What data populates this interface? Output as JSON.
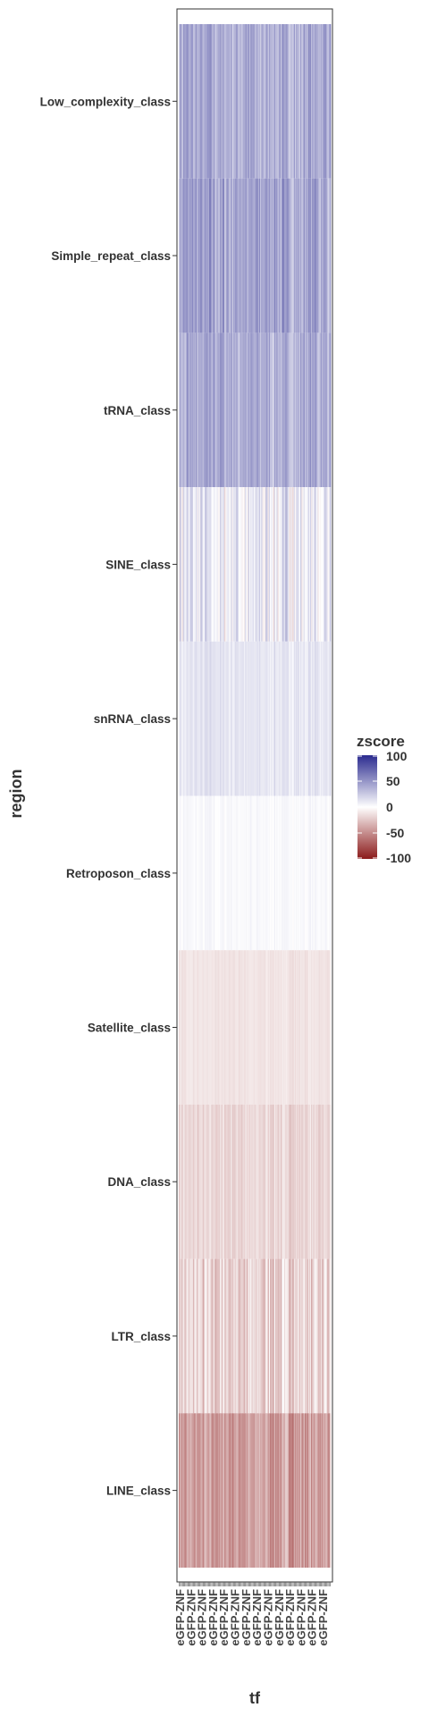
{
  "chart_data": {
    "type": "heatmap",
    "xlabel": "tf",
    "ylabel": "region",
    "x_tick_labels": [
      "eGFP-ZNF",
      "eGFP-ZNF",
      "eGFP-ZNF",
      "eGFP-ZNF",
      "eGFP-ZNF",
      "eGFP-ZNF",
      "eGFP-ZNF",
      "eGFP-ZNF",
      "eGFP-ZNF",
      "eGFP-ZNF",
      "eGFP-ZNF",
      "eGFP-ZNF",
      "eGFP-ZNF",
      "eGFP-ZNF"
    ],
    "rows": [
      {
        "label": "Low_complexity_class",
        "mean_zscore": 38,
        "variation": 22
      },
      {
        "label": "Simple_repeat_class",
        "mean_zscore": 42,
        "variation": 24
      },
      {
        "label": "tRNA_class",
        "mean_zscore": 38,
        "variation": 24
      },
      {
        "label": "SINE_class",
        "mean_zscore": 8,
        "variation": 30
      },
      {
        "label": "snRNA_class",
        "mean_zscore": 12,
        "variation": 10
      },
      {
        "label": "Retroposon_class",
        "mean_zscore": 3,
        "variation": 5
      },
      {
        "label": "Satellite_class",
        "mean_zscore": -12,
        "variation": 5
      },
      {
        "label": "DNA_class",
        "mean_zscore": -18,
        "variation": 12
      },
      {
        "label": "LTR_class",
        "mean_zscore": -20,
        "variation": 25
      },
      {
        "label": "LINE_class",
        "mean_zscore": -42,
        "variation": 24
      }
    ],
    "n_columns": 140,
    "color_scale": {
      "low": "#8b1a1a",
      "mid": "#ffffff",
      "high": "#2b2b8f",
      "limits": [
        -100,
        100
      ]
    },
    "legend": {
      "title": "zscore",
      "position": "right",
      "breaks": [
        100,
        50,
        0,
        -50,
        -100
      ],
      "break_labels": [
        "100",
        "50",
        "0",
        "-50",
        "-100"
      ]
    }
  }
}
